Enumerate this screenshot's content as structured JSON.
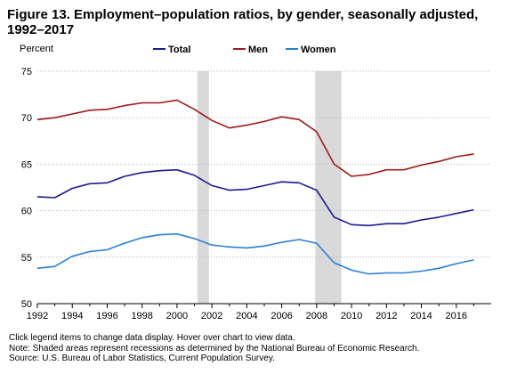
{
  "chart_data": {
    "type": "line",
    "title": "Figure 13. Employment–population ratios, by gender, seasonally adjusted, 1992–2017",
    "ylabel": "Percent",
    "ylim": [
      50,
      75
    ],
    "yticks": [
      50,
      55,
      60,
      65,
      70,
      75
    ],
    "xlim": [
      1992,
      2018
    ],
    "xticks": [
      1992,
      1994,
      1996,
      1998,
      2000,
      2002,
      2004,
      2006,
      2008,
      2010,
      2012,
      2014,
      2016
    ],
    "grid": "horizontal-dotted",
    "legend_position": "top",
    "recessions": [
      [
        2001.17,
        2001.83
      ],
      [
        2007.92,
        2009.42
      ]
    ],
    "recession_color": "#d9d9d9",
    "series": [
      {
        "name": "Total",
        "color": "#1b1b8f",
        "points": [
          [
            1992,
            61.5
          ],
          [
            1993,
            61.4
          ],
          [
            1994,
            62.4
          ],
          [
            1995,
            62.9
          ],
          [
            1996,
            63.0
          ],
          [
            1997,
            63.7
          ],
          [
            1998,
            64.1
          ],
          [
            1999,
            64.3
          ],
          [
            2000,
            64.4
          ],
          [
            2001,
            63.8
          ],
          [
            2002,
            62.7
          ],
          [
            2003,
            62.2
          ],
          [
            2004,
            62.3
          ],
          [
            2005,
            62.7
          ],
          [
            2006,
            63.1
          ],
          [
            2007,
            63.0
          ],
          [
            2008,
            62.2
          ],
          [
            2009,
            59.3
          ],
          [
            2010,
            58.5
          ],
          [
            2011,
            58.4
          ],
          [
            2012,
            58.6
          ],
          [
            2013,
            58.6
          ],
          [
            2014,
            59.0
          ],
          [
            2015,
            59.3
          ],
          [
            2016,
            59.7
          ],
          [
            2017,
            60.1
          ]
        ]
      },
      {
        "name": "Men",
        "color": "#9c1b1b",
        "points": [
          [
            1992,
            69.8
          ],
          [
            1993,
            70.0
          ],
          [
            1994,
            70.4
          ],
          [
            1995,
            70.8
          ],
          [
            1996,
            70.9
          ],
          [
            1997,
            71.3
          ],
          [
            1998,
            71.6
          ],
          [
            1999,
            71.6
          ],
          [
            2000,
            71.9
          ],
          [
            2001,
            70.9
          ],
          [
            2002,
            69.7
          ],
          [
            2003,
            68.9
          ],
          [
            2004,
            69.2
          ],
          [
            2005,
            69.6
          ],
          [
            2006,
            70.1
          ],
          [
            2007,
            69.8
          ],
          [
            2008,
            68.5
          ],
          [
            2009,
            65.0
          ],
          [
            2010,
            63.7
          ],
          [
            2011,
            63.9
          ],
          [
            2012,
            64.4
          ],
          [
            2013,
            64.4
          ],
          [
            2014,
            64.9
          ],
          [
            2015,
            65.3
          ],
          [
            2016,
            65.8
          ],
          [
            2017,
            66.1
          ]
        ]
      },
      {
        "name": "Women",
        "color": "#2a7fd4",
        "points": [
          [
            1992,
            53.8
          ],
          [
            1993,
            54.0
          ],
          [
            1994,
            55.1
          ],
          [
            1995,
            55.6
          ],
          [
            1996,
            55.8
          ],
          [
            1997,
            56.5
          ],
          [
            1998,
            57.1
          ],
          [
            1999,
            57.4
          ],
          [
            2000,
            57.5
          ],
          [
            2001,
            57.0
          ],
          [
            2002,
            56.3
          ],
          [
            2003,
            56.1
          ],
          [
            2004,
            56.0
          ],
          [
            2005,
            56.2
          ],
          [
            2006,
            56.6
          ],
          [
            2007,
            56.9
          ],
          [
            2008,
            56.5
          ],
          [
            2009,
            54.4
          ],
          [
            2010,
            53.6
          ],
          [
            2011,
            53.2
          ],
          [
            2012,
            53.3
          ],
          [
            2013,
            53.3
          ],
          [
            2014,
            53.5
          ],
          [
            2015,
            53.8
          ],
          [
            2016,
            54.3
          ],
          [
            2017,
            54.7
          ]
        ]
      }
    ]
  },
  "notes": {
    "instructions": "Click legend items to change data display. Hover over chart to view data.",
    "note": "Note: Shaded areas represent recessions as determined by the National Bureau of Economic Research.",
    "source": "Source: U.S. Bureau of Labor Statistics, Current Population Survey."
  }
}
